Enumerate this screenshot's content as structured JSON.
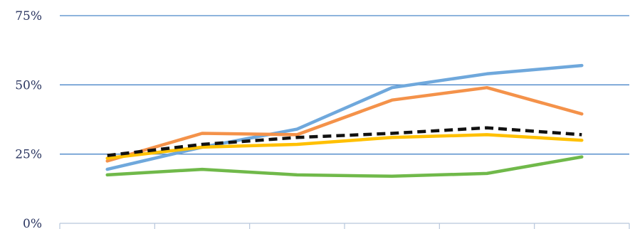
{
  "chart_data": {
    "type": "line",
    "title": "",
    "xlabel": "",
    "ylabel": "",
    "ylim": [
      0,
      75
    ],
    "y_ticks": [
      0,
      25,
      50,
      75
    ],
    "y_tick_labels": [
      "0%",
      "25%",
      "50%",
      "75%"
    ],
    "categories": [
      "",
      "",
      "",
      "",
      "",
      ""
    ],
    "grid": true,
    "legend": "none",
    "colors": {
      "gridline": "#4a86c8",
      "axis": "#b8c7dc",
      "tick_label": "#2a3560"
    },
    "series": [
      {
        "values": [
          19.5,
          27.5,
          34,
          49,
          54,
          57
        ],
        "color": "#6fa8dc",
        "dashed": false
      },
      {
        "values": [
          22.5,
          32.5,
          32,
          44.5,
          49,
          39.5
        ],
        "color": "#f4924a",
        "dashed": false
      },
      {
        "values": [
          23.5,
          27.5,
          28.5,
          31,
          32,
          30
        ],
        "color": "#ffc000",
        "dashed": false
      },
      {
        "values": [
          17.5,
          19.5,
          17.5,
          17,
          18,
          24
        ],
        "color": "#70b94a",
        "dashed": false
      },
      {
        "values": [
          24.5,
          28.5,
          31,
          32.5,
          34.5,
          32
        ],
        "color": "#111111",
        "dashed": true
      }
    ]
  }
}
